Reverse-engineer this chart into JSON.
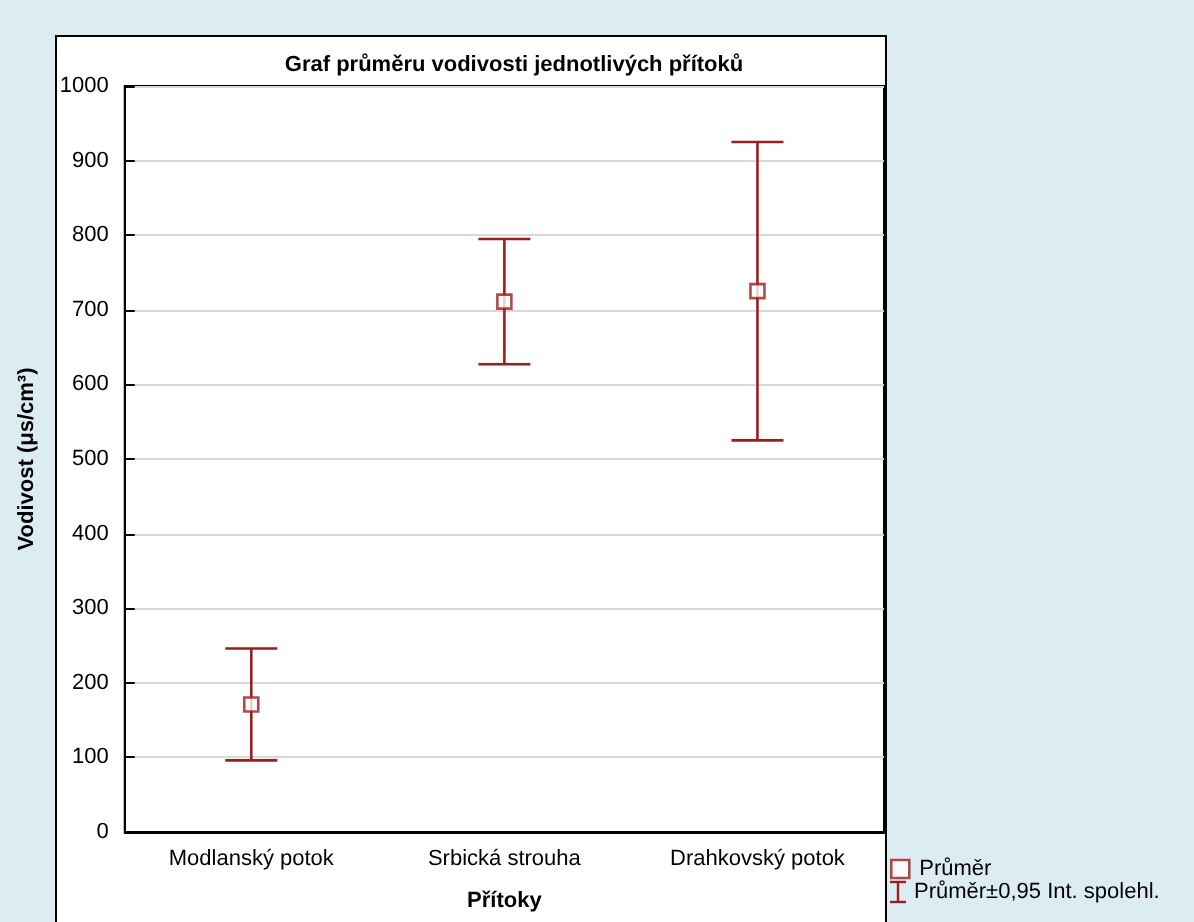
{
  "chart_data": {
    "type": "scatter",
    "title": "Graf průměru vodivosti jednotlivých přítoků",
    "xlabel": "Přítoky",
    "ylabel": "Vodivost (μs/cm³)",
    "categories": [
      "Modlanský potok",
      "Srbická strouha",
      "Drahkovský potok"
    ],
    "series": [
      {
        "name": "Průměr",
        "color": "#a01c1c",
        "values": [
          171,
          711,
          725
        ],
        "errors": [
          75,
          84,
          200
        ]
      }
    ],
    "annotations": [
      "Průměr±0,95 Int. spolehl."
    ],
    "ylim": [
      0,
      1000
    ],
    "yticks": [
      0,
      100,
      200,
      300,
      400,
      500,
      600,
      700,
      800,
      900,
      1000
    ],
    "grid": "y",
    "legend": "bottom right",
    "marker": "square"
  }
}
